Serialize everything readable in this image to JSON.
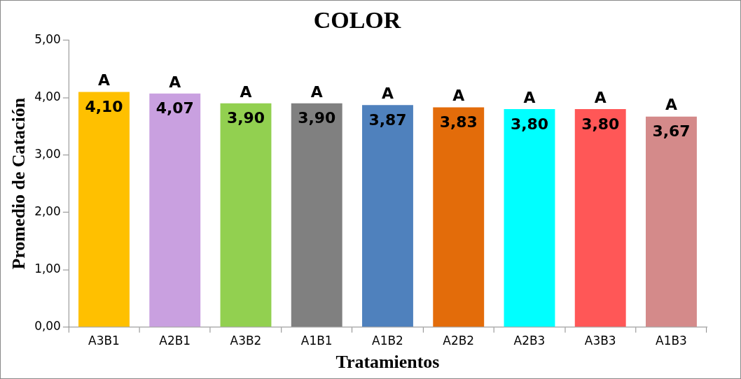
{
  "chart_data": {
    "type": "bar",
    "title": "COLOR",
    "xlabel": "Tratamientos",
    "ylabel": "Promedio de Catación",
    "categories": [
      "A3B1",
      "A2B1",
      "A3B2",
      "A1B1",
      "A1B2",
      "A2B2",
      "A2B3",
      "A3B3",
      "A1B3"
    ],
    "values": [
      4.1,
      4.07,
      3.9,
      3.9,
      3.87,
      3.83,
      3.8,
      3.8,
      3.67
    ],
    "colors": [
      "#ffc000",
      "#c9a0e0",
      "#92d050",
      "#808080",
      "#4f81bd",
      "#e36c0a",
      "#00ffff",
      "#ff5757",
      "#d48a8a"
    ],
    "value_labels": [
      "4,10",
      "4,07",
      "3,90",
      "3,90",
      "3,87",
      "3,83",
      "3,80",
      "3,80",
      "3,67"
    ],
    "ylim": [
      0,
      5
    ],
    "yticks": [
      {
        "value": 0,
        "label": "0,00"
      },
      {
        "value": 1,
        "label": "1,00"
      },
      {
        "value": 2,
        "label": "2,00"
      },
      {
        "value": 3,
        "label": "3,00"
      },
      {
        "value": 4,
        "label": "4,00"
      },
      {
        "value": 5,
        "label": "5,00"
      }
    ],
    "annotations": [
      {
        "text": "A",
        "x": "A3B1",
        "y": 4.1
      },
      {
        "text": "A",
        "x": "A2B1",
        "y": 4.07
      },
      {
        "text": "A",
        "x": "A3B2",
        "y": 3.9
      },
      {
        "text": "A",
        "x": "A1B1",
        "y": 3.9
      },
      {
        "text": "A",
        "x": "A1B2",
        "y": 3.87
      },
      {
        "text": "A",
        "x": "A2B2",
        "y": 3.83
      },
      {
        "text": "A",
        "x": "A2B3",
        "y": 3.8
      },
      {
        "text": "A",
        "x": "A3B3",
        "y": 3.8
      },
      {
        "text": "A",
        "x": "A1B3",
        "y": 3.67
      }
    ]
  }
}
